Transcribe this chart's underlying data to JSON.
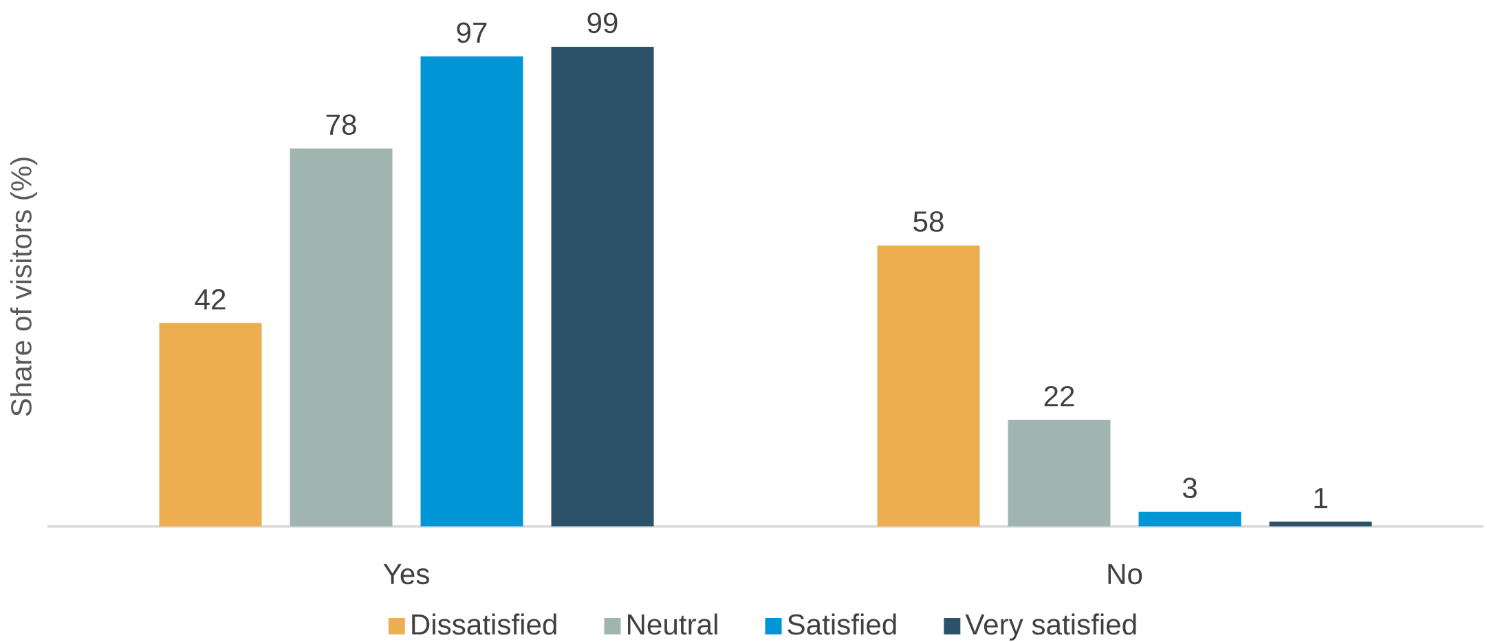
{
  "chart_data": {
    "type": "bar",
    "ylabel": "Share of visitors (%)",
    "categories": [
      "Yes",
      "No"
    ],
    "series": [
      {
        "name": "Dissatisfied",
        "color": "#edae52",
        "values": [
          42,
          58
        ]
      },
      {
        "name": "Neutral",
        "color": "#a1b5b0",
        "values": [
          78,
          22
        ]
      },
      {
        "name": "Satisfied",
        "color": "#0096d6",
        "values": [
          97,
          3
        ]
      },
      {
        "name": "Very satisfied",
        "color": "#2b5269",
        "values": [
          99,
          1
        ]
      }
    ],
    "data_labels": true,
    "legend": "bottom"
  }
}
